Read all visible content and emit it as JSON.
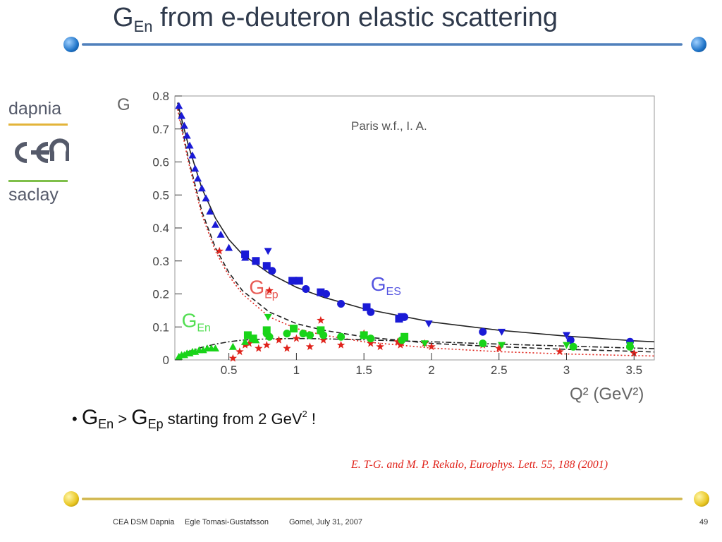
{
  "title": {
    "main": "G",
    "sub": "En",
    "rest": " from e-deuteron elastic scattering"
  },
  "logo": {
    "top": "dapnia",
    "middle": "cea",
    "bottom": "saclay"
  },
  "bullet": {
    "g1": "G",
    "s1": "En",
    "gt": " > ",
    "g2": "G",
    "s2": "Ep",
    "text": " starting from 2 GeV",
    "sup": "2",
    "end": " !"
  },
  "reference": "E. T-G. and M. P. Rekalo, Europhys. Lett. 55, 188 (2001)",
  "footer": {
    "org": "CEA DSM Dapnia",
    "author": "Egle Tomasi-Gustafsson",
    "place_date": "Gomel, July 31, 2007",
    "page": "49"
  },
  "colors": {
    "ges": "#1a1ad6",
    "gep": "#e0231b",
    "gen": "#19d419",
    "title": "#2f3a4c"
  },
  "chart_data": {
    "type": "scatter",
    "annotation": "Paris w.f., I. A.",
    "ylabel": "G",
    "xlabel": "Q² (GeV²)",
    "xlim": [
      0.1,
      3.65
    ],
    "ylim": [
      0,
      0.8
    ],
    "x_ticks": [
      0.5,
      1,
      1.5,
      2,
      2.5,
      3,
      3.5
    ],
    "x_tick_labels": [
      "0.5",
      "1",
      "1.5",
      "2",
      "2.5",
      "3",
      "3.5"
    ],
    "y_ticks": [
      0,
      0.1,
      0.2,
      0.3,
      0.4,
      0.5,
      0.6,
      0.7,
      0.8
    ],
    "y_tick_labels": [
      "0",
      "0.1",
      "0.2",
      "0.3",
      "0.4",
      "0.5",
      "0.6",
      "0.7",
      "0.8"
    ],
    "curves": [
      {
        "style": "solid",
        "color": "#222222",
        "points": [
          [
            0.12,
            0.78
          ],
          [
            0.15,
            0.73
          ],
          [
            0.2,
            0.65
          ],
          [
            0.3,
            0.52
          ],
          [
            0.4,
            0.43
          ],
          [
            0.5,
            0.365
          ],
          [
            0.6,
            0.32
          ],
          [
            0.8,
            0.262
          ],
          [
            1.0,
            0.22
          ],
          [
            1.2,
            0.19
          ],
          [
            1.5,
            0.155
          ],
          [
            2.0,
            0.115
          ],
          [
            2.5,
            0.09
          ],
          [
            3.0,
            0.072
          ],
          [
            3.5,
            0.058
          ],
          [
            3.65,
            0.055
          ]
        ]
      },
      {
        "style": "dashed",
        "color": "#222222",
        "points": [
          [
            0.12,
            0.77
          ],
          [
            0.15,
            0.71
          ],
          [
            0.2,
            0.61
          ],
          [
            0.3,
            0.45
          ],
          [
            0.4,
            0.34
          ],
          [
            0.5,
            0.265
          ],
          [
            0.6,
            0.21
          ],
          [
            0.8,
            0.145
          ],
          [
            1.0,
            0.11
          ],
          [
            1.2,
            0.09
          ],
          [
            1.5,
            0.07
          ],
          [
            2.0,
            0.05
          ],
          [
            2.5,
            0.04
          ],
          [
            3.0,
            0.032
          ],
          [
            3.5,
            0.026
          ],
          [
            3.65,
            0.024
          ]
        ]
      },
      {
        "style": "dotted",
        "color": "#e0231b",
        "points": [
          [
            0.12,
            0.76
          ],
          [
            0.15,
            0.7
          ],
          [
            0.2,
            0.6
          ],
          [
            0.3,
            0.44
          ],
          [
            0.4,
            0.33
          ],
          [
            0.5,
            0.255
          ],
          [
            0.6,
            0.2
          ],
          [
            0.8,
            0.13
          ],
          [
            1.0,
            0.095
          ],
          [
            1.2,
            0.075
          ],
          [
            1.5,
            0.055
          ],
          [
            2.0,
            0.036
          ],
          [
            2.5,
            0.025
          ],
          [
            3.0,
            0.018
          ],
          [
            3.5,
            0.013
          ],
          [
            3.65,
            0.012
          ]
        ]
      },
      {
        "style": "dashdot",
        "color": "#222222",
        "points": [
          [
            0.12,
            0.01
          ],
          [
            0.2,
            0.025
          ],
          [
            0.3,
            0.038
          ],
          [
            0.4,
            0.048
          ],
          [
            0.5,
            0.055
          ],
          [
            0.6,
            0.06
          ],
          [
            0.8,
            0.064
          ],
          [
            1.0,
            0.065
          ],
          [
            1.2,
            0.064
          ],
          [
            1.5,
            0.061
          ],
          [
            2.0,
            0.055
          ],
          [
            2.5,
            0.048
          ],
          [
            3.0,
            0.042
          ],
          [
            3.5,
            0.036
          ],
          [
            3.65,
            0.034
          ]
        ]
      }
    ],
    "series": [
      {
        "name": "G_ES",
        "label_text": "G",
        "label_sub": "ES",
        "label_at": [
          1.55,
          0.21
        ],
        "color": "#1a1ad6",
        "circles": [
          [
            0.82,
            0.27
          ],
          [
            1.0,
            0.24
          ],
          [
            1.07,
            0.215
          ],
          [
            1.22,
            0.2
          ],
          [
            1.33,
            0.17
          ],
          [
            1.55,
            0.145
          ],
          [
            1.8,
            0.13
          ],
          [
            2.38,
            0.085
          ],
          [
            3.03,
            0.06
          ],
          [
            3.47,
            0.055
          ]
        ],
        "squares": [
          [
            0.62,
            0.32
          ],
          [
            0.7,
            0.3
          ],
          [
            0.78,
            0.285
          ],
          [
            0.97,
            0.24
          ],
          [
            1.02,
            0.24
          ],
          [
            1.18,
            0.205
          ],
          [
            1.52,
            0.16
          ],
          [
            1.76,
            0.125
          ],
          [
            1.78,
            0.13
          ]
        ],
        "triangles_up": [
          [
            0.13,
            0.77
          ],
          [
            0.15,
            0.74
          ],
          [
            0.17,
            0.71
          ],
          [
            0.19,
            0.68
          ],
          [
            0.21,
            0.65
          ],
          [
            0.23,
            0.62
          ],
          [
            0.25,
            0.58
          ],
          [
            0.27,
            0.55
          ],
          [
            0.3,
            0.52
          ],
          [
            0.33,
            0.49
          ],
          [
            0.36,
            0.45
          ],
          [
            0.4,
            0.41
          ],
          [
            0.44,
            0.38
          ],
          [
            0.5,
            0.34
          ],
          [
            0.62,
            0.31
          ]
        ],
        "triangles_down": [
          [
            0.79,
            0.33
          ],
          [
            1.98,
            0.11
          ],
          [
            2.52,
            0.085
          ],
          [
            3.0,
            0.075
          ],
          [
            3.47,
            0.045
          ]
        ]
      },
      {
        "name": "G_Ep",
        "label_text": "G",
        "label_sub": "Ep",
        "label_at": [
          0.65,
          0.2
        ],
        "color": "#e0231b",
        "stars": [
          [
            0.43,
            0.33
          ],
          [
            0.53,
            0.005
          ],
          [
            0.58,
            0.025
          ],
          [
            0.62,
            0.045
          ],
          [
            0.65,
            0.05
          ],
          [
            0.72,
            0.035
          ],
          [
            0.78,
            0.045
          ],
          [
            0.8,
            0.21
          ],
          [
            0.87,
            0.06
          ],
          [
            0.93,
            0.035
          ],
          [
            1.0,
            0.065
          ],
          [
            1.1,
            0.04
          ],
          [
            1.18,
            0.12
          ],
          [
            1.2,
            0.06
          ],
          [
            1.33,
            0.045
          ],
          [
            1.5,
            0.08
          ],
          [
            1.55,
            0.05
          ],
          [
            1.62,
            0.04
          ],
          [
            1.75,
            0.055
          ],
          [
            1.77,
            0.045
          ],
          [
            1.95,
            0.05
          ],
          [
            2.0,
            0.04
          ],
          [
            2.38,
            0.045
          ],
          [
            2.5,
            0.035
          ],
          [
            2.95,
            0.025
          ],
          [
            3.5,
            0.02
          ]
        ]
      },
      {
        "name": "G_En",
        "label_text": "G",
        "label_sub": "En",
        "label_at": [
          0.15,
          0.1
        ],
        "color": "#19d419",
        "triangles_up": [
          [
            0.13,
            0.01
          ],
          [
            0.15,
            0.015
          ],
          [
            0.17,
            0.015
          ],
          [
            0.19,
            0.02
          ],
          [
            0.21,
            0.02
          ],
          [
            0.23,
            0.025
          ],
          [
            0.25,
            0.025
          ],
          [
            0.28,
            0.03
          ],
          [
            0.31,
            0.03
          ],
          [
            0.34,
            0.035
          ],
          [
            0.37,
            0.035
          ],
          [
            0.4,
            0.035
          ],
          [
            0.53,
            0.04
          ],
          [
            0.62,
            0.055
          ],
          [
            0.7,
            0.06
          ]
        ],
        "circles": [
          [
            0.78,
            0.08
          ],
          [
            0.8,
            0.07
          ],
          [
            0.93,
            0.08
          ],
          [
            1.05,
            0.08
          ],
          [
            1.1,
            0.075
          ],
          [
            1.2,
            0.075
          ],
          [
            1.33,
            0.07
          ],
          [
            1.55,
            0.065
          ],
          [
            1.78,
            0.06
          ],
          [
            2.38,
            0.05
          ],
          [
            3.05,
            0.04
          ],
          [
            3.47,
            0.04
          ]
        ],
        "squares": [
          [
            0.64,
            0.075
          ],
          [
            0.68,
            0.065
          ],
          [
            0.78,
            0.09
          ],
          [
            0.98,
            0.095
          ],
          [
            1.18,
            0.09
          ],
          [
            1.5,
            0.075
          ],
          [
            1.8,
            0.07
          ]
        ],
        "triangles_down": [
          [
            0.79,
            0.13
          ],
          [
            1.95,
            0.05
          ],
          [
            2.52,
            0.045
          ],
          [
            3.0,
            0.045
          ],
          [
            3.47,
            0.045
          ]
        ]
      }
    ]
  }
}
